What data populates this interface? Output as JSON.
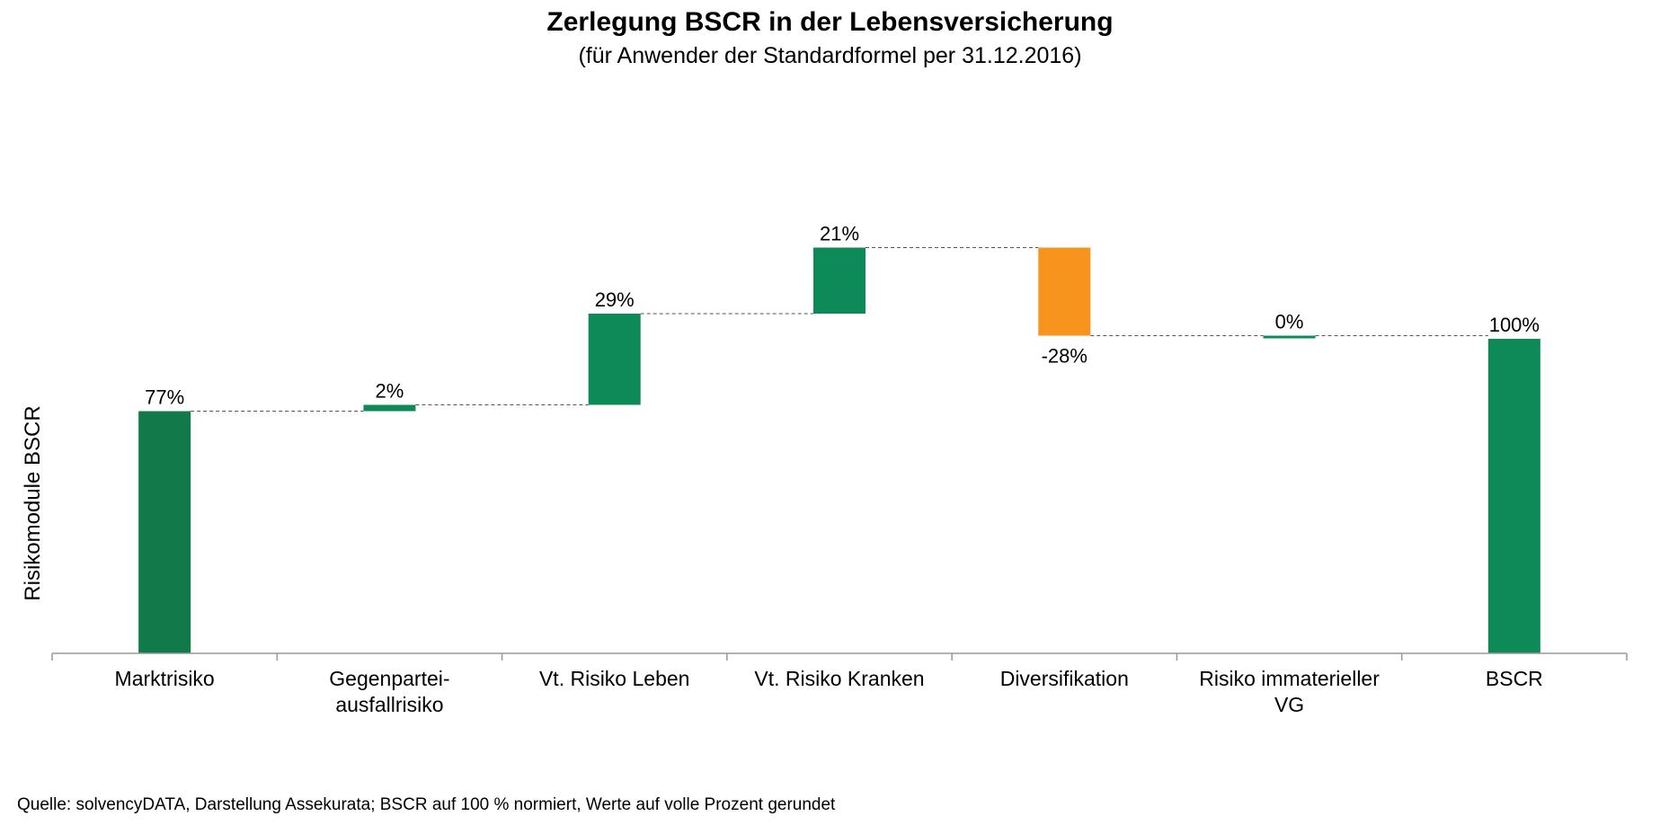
{
  "chart_data": {
    "type": "bar",
    "variant": "waterfall",
    "title": "Zerlegung BSCR in der Lebensversicherung",
    "subtitle": "(für Anwender der Standardformel per 31.12.2016)",
    "ylabel": "Risikomodule BSCR",
    "xlabel": "",
    "categories": [
      [
        "Marktrisiko"
      ],
      [
        "Gegenpartei-",
        "ausfallrisiko"
      ],
      [
        "Vt. Risiko Leben"
      ],
      [
        "Vt. Risiko Kranken"
      ],
      [
        "Diversifikation"
      ],
      [
        "Risiko immaterieller",
        "VG"
      ],
      [
        "BSCR"
      ]
    ],
    "values": [
      77,
      2,
      29,
      21,
      -28,
      0,
      100
    ],
    "data_labels": [
      "77%",
      "2%",
      "29%",
      "21%",
      "-28%",
      "0%",
      "100%"
    ],
    "is_total": [
      false,
      false,
      false,
      false,
      false,
      false,
      true
    ],
    "ylim": [
      0,
      130
    ],
    "grid": false,
    "colors": {
      "increase": "#0d8a58",
      "first": "#12794a",
      "decrease": "#f7941d",
      "total": "#0d8a58",
      "axis": "#999999",
      "connector": "#555555"
    }
  },
  "footer": {
    "source": "Quelle: solvencyDATA, Darstellung Assekurata;  BSCR auf 100 % normiert, Werte auf volle Prozent gerundet"
  }
}
